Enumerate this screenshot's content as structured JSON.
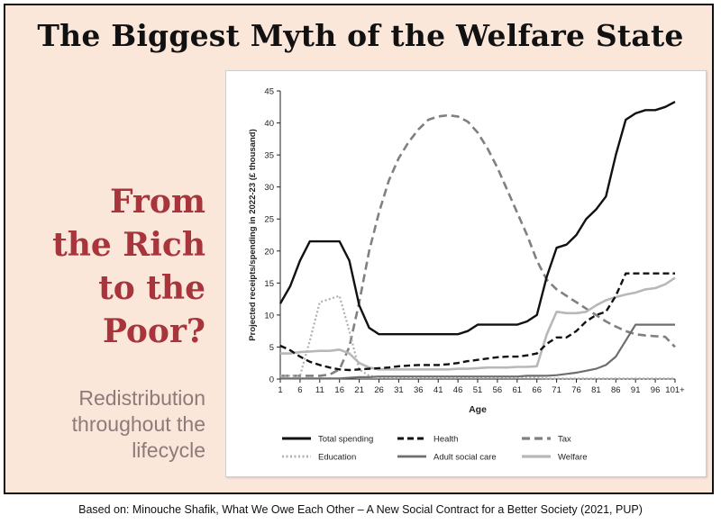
{
  "title": "The Biggest Myth of the Welfare State",
  "headline_lines": [
    "From",
    "the Rich",
    "to the",
    "Poor?"
  ],
  "subtitle_lines": [
    "Redistribution",
    "throughout the",
    "lifecycle"
  ],
  "footer": "Based on: Minouche Shafik, What We Owe Each Other – A New Social Contract for a Better Society (2021, PUP)",
  "colors": {
    "accent": "#a8343c",
    "background": "#fbe6da",
    "subtitle": "#8f7a7a"
  },
  "chart_data": {
    "type": "line",
    "xlabel": "Age",
    "ylabel": "Projected receipts/spending in 2022-23 (£ thousand)",
    "x_ticks": [
      "1",
      "6",
      "11",
      "16",
      "21",
      "26",
      "31",
      "36",
      "41",
      "46",
      "51",
      "56",
      "61",
      "66",
      "71",
      "76",
      "81",
      "86",
      "91",
      "96",
      "101+"
    ],
    "y_ticks": [
      "0",
      "5",
      "10",
      "15",
      "20",
      "25",
      "30",
      "35",
      "40",
      "45"
    ],
    "ylim": [
      0,
      45
    ],
    "grid": false,
    "legend_position": "bottom",
    "x": [
      1,
      3.5,
      6,
      8.5,
      11,
      13.5,
      16,
      18.5,
      21,
      23.5,
      26,
      28.5,
      31,
      33.5,
      36,
      38.5,
      41,
      43.5,
      46,
      48.5,
      51,
      53.5,
      56,
      58.5,
      61,
      63.5,
      66,
      68.5,
      71,
      73.5,
      76,
      78.5,
      81,
      83.5,
      86,
      88.5,
      91,
      93.5,
      96,
      98.5,
      101
    ],
    "series": [
      {
        "name": "Total spending",
        "style": "solid",
        "color": "#111111",
        "width": 2.4,
        "values": [
          11.8,
          14.5,
          18.5,
          21.5,
          21.5,
          21.5,
          21.5,
          18.5,
          11.5,
          8.0,
          7.0,
          7.0,
          7.0,
          7.0,
          7.0,
          7.0,
          7.0,
          7.0,
          7.0,
          7.5,
          8.5,
          8.5,
          8.5,
          8.5,
          8.5,
          9.0,
          10.0,
          16.0,
          20.5,
          21.0,
          22.5,
          25.0,
          26.5,
          28.5,
          35.0,
          40.5,
          41.5,
          42.0,
          42.0,
          42.5,
          43.3
        ]
      },
      {
        "name": "Health",
        "style": "dash",
        "color": "#111111",
        "width": 2.4,
        "values": [
          5.2,
          4.5,
          3.5,
          2.7,
          2.2,
          1.8,
          1.5,
          1.4,
          1.5,
          1.6,
          1.7,
          1.8,
          2.0,
          2.1,
          2.2,
          2.2,
          2.2,
          2.3,
          2.5,
          2.8,
          3.0,
          3.2,
          3.4,
          3.5,
          3.5,
          3.7,
          4.0,
          5.5,
          6.5,
          6.5,
          7.5,
          9.0,
          10.0,
          10.5,
          13.0,
          16.5,
          16.5,
          16.5,
          16.5,
          16.5,
          16.5
        ]
      },
      {
        "name": "Tax",
        "style": "dash-gray",
        "color": "#808080",
        "width": 2.6,
        "values": [
          0.5,
          0.5,
          0.5,
          0.5,
          0.5,
          0.7,
          1.5,
          5.0,
          12.0,
          20.0,
          26.0,
          31.0,
          34.5,
          37.0,
          39.0,
          40.5,
          41.0,
          41.2,
          41.0,
          40.2,
          38.5,
          36.0,
          33.0,
          29.5,
          26.0,
          22.5,
          18.5,
          15.5,
          14.0,
          13.0,
          12.0,
          11.0,
          10.0,
          9.0,
          8.2,
          7.5,
          7.0,
          6.8,
          6.7,
          6.6,
          5.0
        ]
      },
      {
        "name": "Education",
        "style": "dot",
        "color": "#b0b0b0",
        "width": 2.2,
        "values": [
          0.5,
          0.5,
          0.5,
          6.0,
          12.0,
          12.5,
          13.0,
          7.5,
          1.5,
          0.5,
          0.3,
          0.2,
          0.2,
          0.2,
          0.2,
          0.2,
          0.2,
          0.2,
          0.2,
          0.2,
          0.2,
          0.2,
          0.2,
          0.2,
          0.2,
          0.2,
          0.2,
          0.1,
          0.1,
          0.1,
          0.1,
          0.1,
          0.1,
          0.1,
          0.1,
          0.1,
          0.1,
          0.1,
          0.1,
          0.1,
          0.1
        ]
      },
      {
        "name": "Adult social care",
        "style": "solid",
        "color": "#6e6e6e",
        "width": 2.2,
        "values": [
          0.1,
          0.1,
          0.1,
          0.1,
          0.1,
          0.1,
          0.1,
          0.2,
          0.3,
          0.3,
          0.4,
          0.4,
          0.4,
          0.4,
          0.4,
          0.4,
          0.4,
          0.4,
          0.4,
          0.4,
          0.4,
          0.4,
          0.4,
          0.4,
          0.4,
          0.5,
          0.5,
          0.5,
          0.6,
          0.8,
          1.0,
          1.3,
          1.6,
          2.2,
          3.5,
          6.0,
          8.5,
          8.5,
          8.5,
          8.5,
          8.5
        ]
      },
      {
        "name": "Welfare",
        "style": "solid",
        "color": "#b8b8b8",
        "width": 2.6,
        "values": [
          4.0,
          4.0,
          4.2,
          4.3,
          4.4,
          4.4,
          4.6,
          4.0,
          2.5,
          1.8,
          1.5,
          1.5,
          1.5,
          1.5,
          1.5,
          1.5,
          1.5,
          1.5,
          1.6,
          1.6,
          1.7,
          1.8,
          1.8,
          1.8,
          1.9,
          1.9,
          2.0,
          7.0,
          10.5,
          10.3,
          10.3,
          10.5,
          11.5,
          12.3,
          12.8,
          13.2,
          13.5,
          14.0,
          14.2,
          14.8,
          15.8
        ]
      }
    ]
  }
}
